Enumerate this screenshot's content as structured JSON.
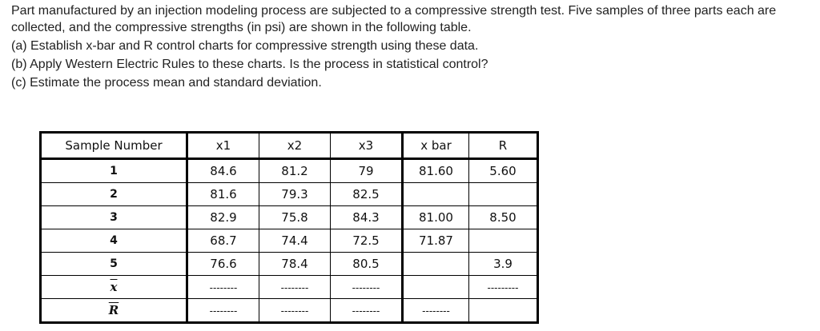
{
  "problem": {
    "intro": "Part manufactured by an injection modeling process are subjected to a compressive strength test. Five samples of three parts each are collected, and the compressive strengths (in psi) are shown in the following table.",
    "part_a": "(a) Establish x-bar and R control charts for compressive strength using these data.",
    "part_b": "(b) Apply Western Electric Rules to these charts. Is the process in statistical control?",
    "part_c": "(c) Estimate the process mean and standard deviation."
  },
  "table": {
    "headers": [
      "Sample Number",
      "x1",
      "x2",
      "x3",
      "x bar",
      "R"
    ],
    "rows": [
      [
        "1",
        "84.6",
        "81.2",
        "79",
        "81.60",
        "5.60"
      ],
      [
        "2",
        "81.6",
        "79.3",
        "82.5",
        "",
        ""
      ],
      [
        "3",
        "82.9",
        "75.8",
        "84.3",
        "81.00",
        "8.50"
      ],
      [
        "4",
        "68.7",
        "74.4",
        "72.5",
        "71.87",
        ""
      ],
      [
        "5",
        "76.6",
        "78.4",
        "80.5",
        "",
        "3.9"
      ],
      [
        "x",
        "--------",
        "--------",
        "--------",
        "",
        "---------"
      ],
      [
        "R",
        "--------",
        "--------",
        "--------",
        "--------",
        ""
      ]
    ]
  }
}
